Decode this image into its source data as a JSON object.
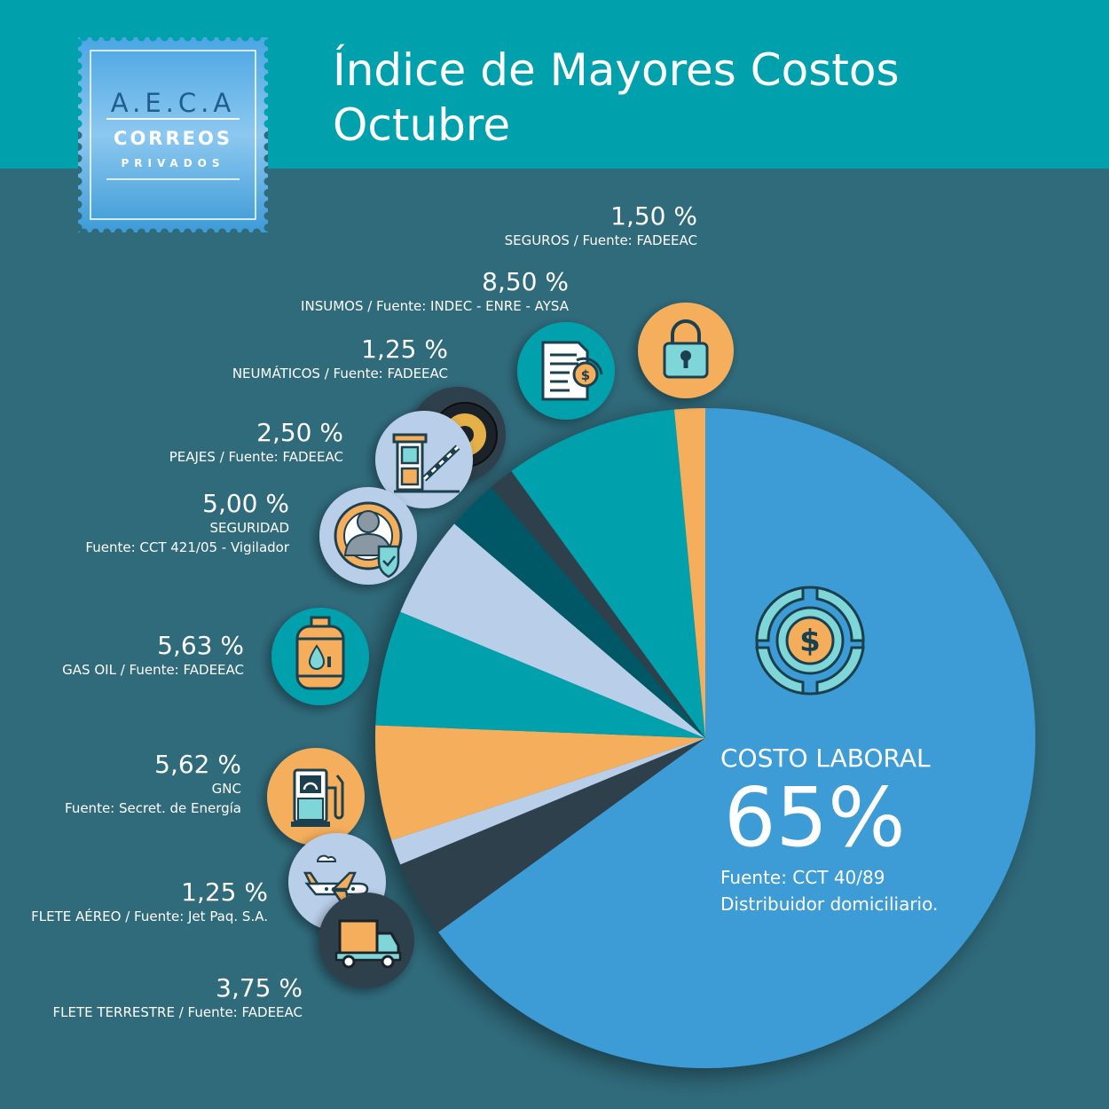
{
  "title_line1": "Índice de Mayores Costos",
  "title_line2": "Octubre",
  "logo": {
    "letters": "A.E.C.A",
    "line1": "CORREOS",
    "line2": "PRIVADOS"
  },
  "colors": {
    "header": "#00a0ad",
    "background": "#306b7c",
    "main_slice": "#3d9bd6",
    "orange": "#f4ae5b",
    "teal": "#00a0ad",
    "light_blue": "#b9cfe9",
    "dark_teal": "#005866",
    "dark_gray": "#2f3f4b"
  },
  "main": {
    "name": "COSTO LABORAL",
    "value_text": "65%",
    "source_line1": "Fuente:  CCT 40/89",
    "source_line2": "Distribuidor domiciliario."
  },
  "chart_data": {
    "type": "pie",
    "title": "Índice de Mayores Costos Octubre",
    "slices": [
      {
        "label": "COSTO LABORAL",
        "value": 65.0,
        "value_text": "65%",
        "color": "#3d9bd6",
        "icon": "dollar-coin-icon"
      },
      {
        "label": "FLETE TERRESTRE",
        "value": 3.75,
        "value_text": "3,75 %",
        "source": "FLETE TERRESTRE / Fuente: FADEEAC",
        "color": "#2f3f4b",
        "icon": "truck-icon"
      },
      {
        "label": "FLETE AÉREO",
        "value": 1.25,
        "value_text": "1,25 %",
        "source": "FLETE AÉREO / Fuente: Jet Paq. S.A.",
        "color": "#b9cfe9",
        "icon": "airplane-icon"
      },
      {
        "label": "GNC",
        "value": 5.62,
        "value_text": "5,62 %",
        "source": "GNC",
        "source2": "Fuente: Secret. de Energía",
        "color": "#f4ae5b",
        "icon": "gas-pump-icon"
      },
      {
        "label": "GAS OIL",
        "value": 5.63,
        "value_text": "5,63 %",
        "source": "GAS OIL / Fuente: FADEEAC",
        "color": "#00a0ad",
        "icon": "gas-cylinder-icon"
      },
      {
        "label": "SEGURIDAD",
        "value": 5.0,
        "value_text": "5,00 %",
        "source": "SEGURIDAD",
        "source2": "Fuente: CCT 421/05 - Vigilador",
        "color": "#b9cfe9",
        "icon": "security-guard-icon"
      },
      {
        "label": "PEAJES",
        "value": 2.5,
        "value_text": "2,50 %",
        "source": "PEAJES / Fuente: FADEEAC",
        "color": "#005866",
        "icon": "toll-booth-icon"
      },
      {
        "label": "NEUMÁTICOS",
        "value": 1.25,
        "value_text": "1,25 %",
        "source": "NEUMÁTICOS  / Fuente: FADEEAC",
        "color": "#2f3f4b",
        "icon": "tire-icon"
      },
      {
        "label": "INSUMOS",
        "value": 8.5,
        "value_text": "8,50 %",
        "source": "INSUMOS / Fuente: INDEC - ENRE - AYSA",
        "color": "#00a0ad",
        "icon": "invoice-icon"
      },
      {
        "label": "SEGUROS",
        "value": 1.5,
        "value_text": "1,50 %",
        "source": "SEGUROS / Fuente: FADEEAC",
        "color": "#f4ae5b",
        "icon": "padlock-icon"
      }
    ]
  }
}
